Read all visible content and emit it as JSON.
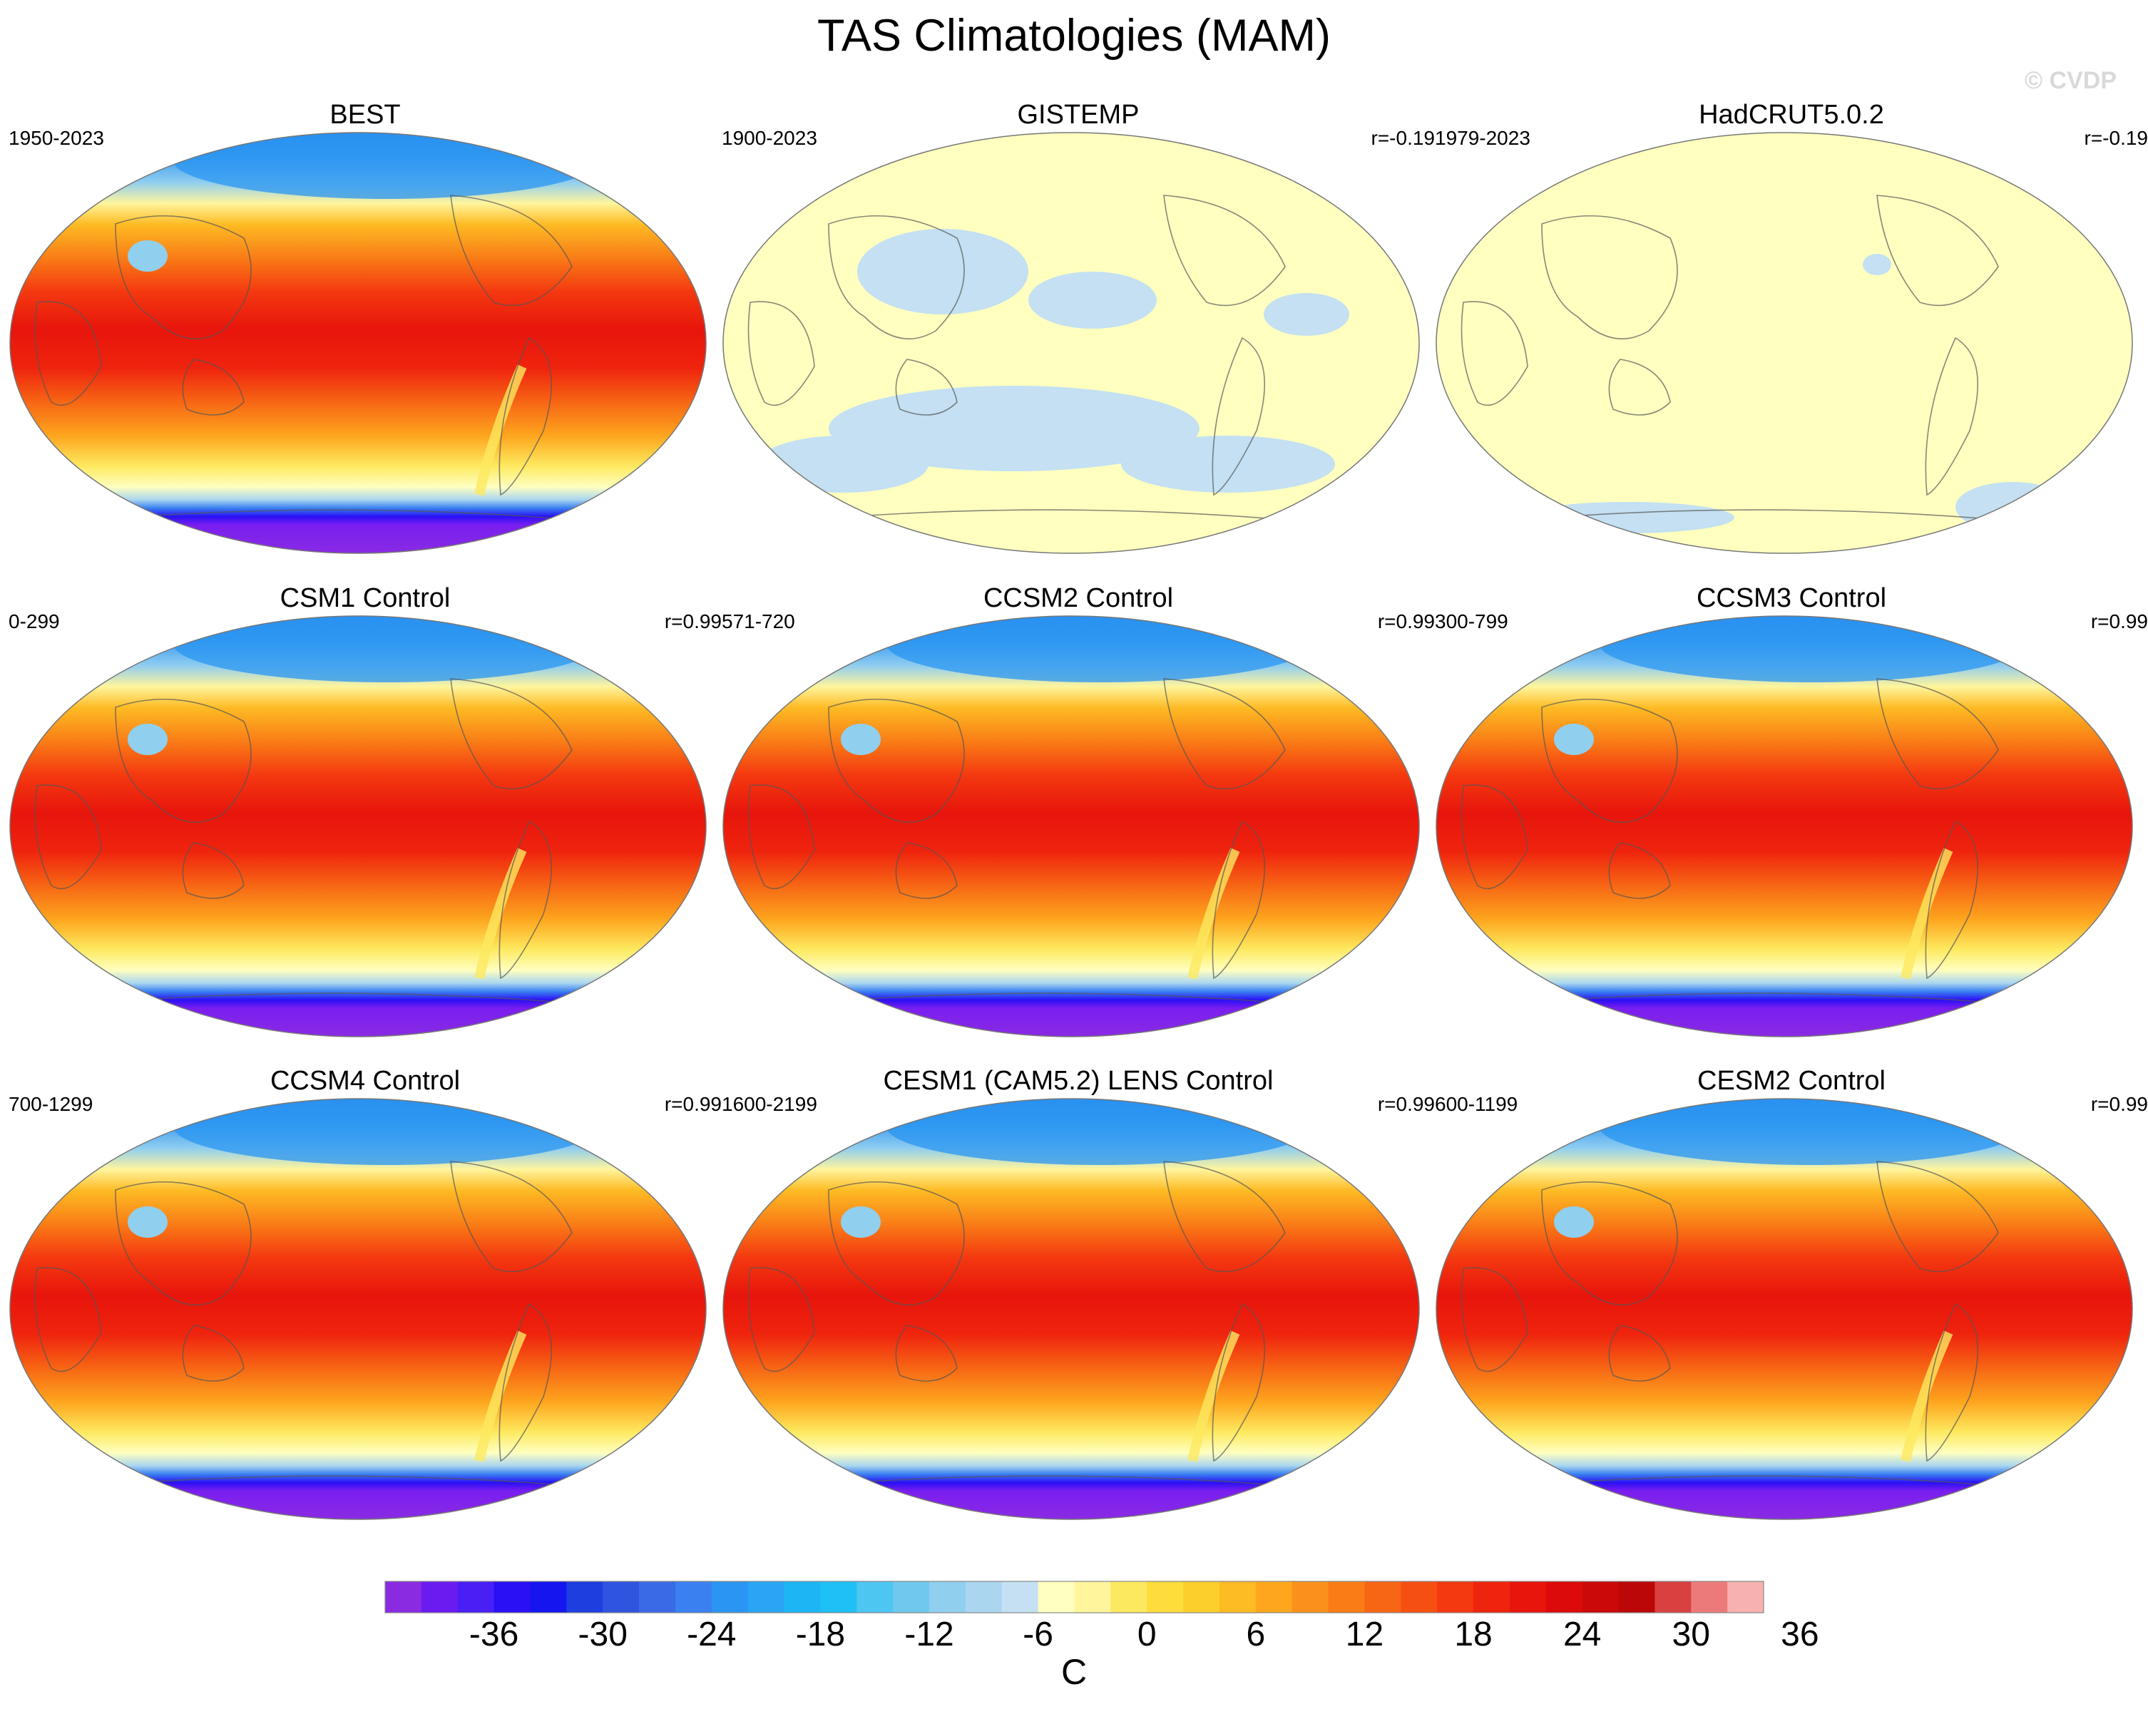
{
  "title": "TAS Climatologies (MAM)",
  "watermark": "© CVDP",
  "chart_data": {
    "type": "heatmap",
    "title": "TAS Climatologies (MAM)",
    "panels": [
      {
        "name": "BEST",
        "period": "1950-2023",
        "corr": "",
        "field": "climatology"
      },
      {
        "name": "GISTEMP",
        "period": "1900-2023",
        "corr": "r=-0.19",
        "field": "near-zero"
      },
      {
        "name": "HadCRUT5.0.2",
        "period": "1979-2023",
        "corr": "r=-0.19",
        "field": "near-zero"
      },
      {
        "name": "CSM1 Control",
        "period": "0-299",
        "corr": "r=0.99",
        "field": "climatology"
      },
      {
        "name": "CCSM2 Control",
        "period": "571-720",
        "corr": "r=0.99",
        "field": "climatology"
      },
      {
        "name": "CCSM3 Control",
        "period": "300-799",
        "corr": "r=0.99",
        "field": "climatology"
      },
      {
        "name": "CCSM4 Control",
        "period": "700-1299",
        "corr": "r=0.99",
        "field": "climatology"
      },
      {
        "name": "CESM1 (CAM5.2) LENS Control",
        "period": "1600-2199",
        "corr": "r=0.99",
        "field": "climatology"
      },
      {
        "name": "CESM2 Control",
        "period": "600-1199",
        "corr": "r=0.99",
        "field": "climatology"
      }
    ],
    "colorbar": {
      "unit": "C",
      "tick_labels": [
        "-36",
        "-30",
        "-24",
        "-18",
        "-12",
        "-6",
        "0",
        "6",
        "12",
        "18",
        "24",
        "30",
        "36"
      ],
      "colors": [
        "#8a2be2",
        "#6a1cf0",
        "#4a1ff5",
        "#2a10f5",
        "#1515f0",
        "#1e3ee0",
        "#2f55e0",
        "#3a6ae6",
        "#3a80f0",
        "#2a95f2",
        "#2aa5f5",
        "#1eb5f5",
        "#1ec0f5",
        "#4ec6f2",
        "#70c8ee",
        "#90cfee",
        "#aad6ef",
        "#c4e0f2",
        "#ffffc0",
        "#fff59d",
        "#fde95f",
        "#fddc3c",
        "#fdcf2c",
        "#fdbb24",
        "#fda61e",
        "#fb911a",
        "#f97c16",
        "#f76614",
        "#f64f12",
        "#f43810",
        "#ef240e",
        "#e7150c",
        "#dc0a0a",
        "#cc0909",
        "#bb0707",
        "#d94040",
        "#ec7a7a",
        "#f7b1b1"
      ]
    }
  }
}
